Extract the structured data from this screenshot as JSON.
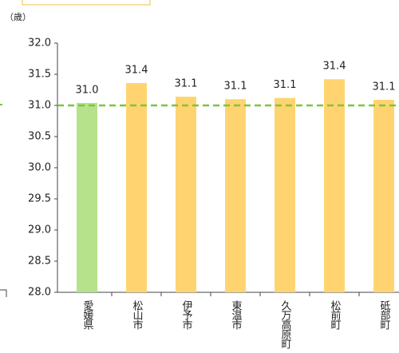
{
  "chart_data": {
    "type": "bar",
    "ylabel": "（歳）",
    "categories": [
      "愛媛県",
      "松山市",
      "伊予市",
      "東温市",
      "久万高原町",
      "松前町",
      "砥部町"
    ],
    "values": [
      31.04,
      31.36,
      31.14,
      31.1,
      31.12,
      31.42,
      31.09
    ],
    "value_labels": [
      "31.0",
      "31.4",
      "31.1",
      "31.1",
      "31.1",
      "31.4",
      "31.1"
    ],
    "colors": [
      "#b5e28a",
      "#ffd470",
      "#ffd470",
      "#ffd470",
      "#ffd470",
      "#ffd470",
      "#ffd470"
    ],
    "ylim": [
      28.0,
      32.0
    ],
    "yticks": [
      {
        "value": 28.0,
        "label": "28.0"
      },
      {
        "value": 28.5,
        "label": "28.5"
      },
      {
        "value": 29.0,
        "label": "29.0"
      },
      {
        "value": 29.5,
        "label": "29.5"
      },
      {
        "value": 30.0,
        "label": "30.0"
      },
      {
        "value": 30.5,
        "label": "30.5"
      },
      {
        "value": 31.0,
        "label": "31.0"
      },
      {
        "value": 31.5,
        "label": "31.5"
      },
      {
        "value": 32.0,
        "label": "32.0"
      }
    ],
    "reference_line": {
      "value": 31.0,
      "color": "#7cc63c"
    }
  }
}
